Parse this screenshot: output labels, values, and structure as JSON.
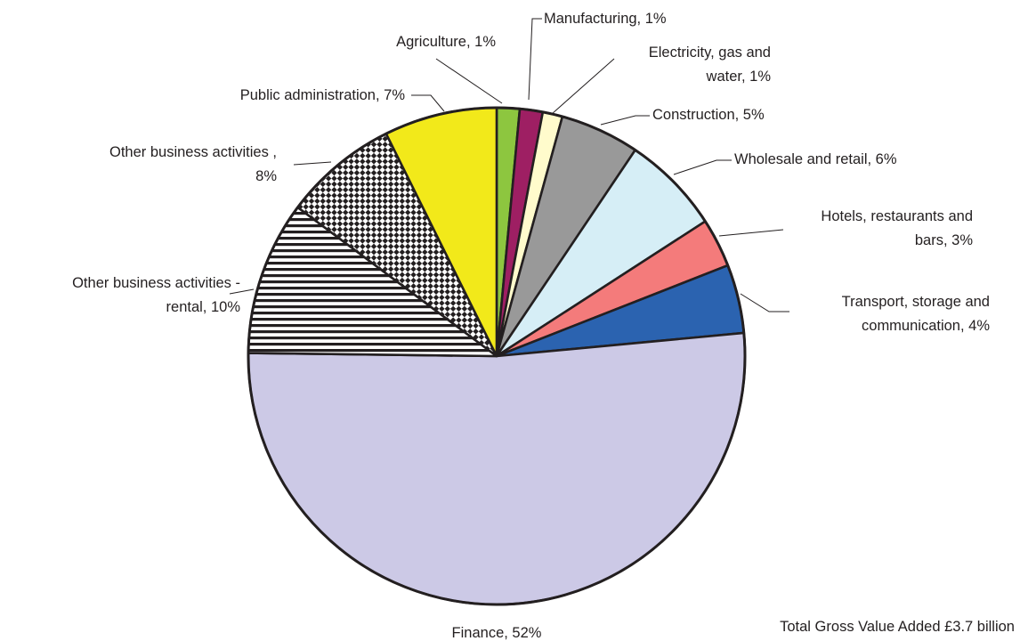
{
  "chart_data": {
    "type": "pie",
    "total_label": "Total Gross Value Added  £3.7 billion",
    "slices": [
      {
        "key": "agriculture",
        "label_lines": [
          "Agriculture, 1%"
        ],
        "value": 1.5,
        "fill": "#8dc63f",
        "pattern": "none"
      },
      {
        "key": "manufacturing",
        "label_lines": [
          "Manufacturing, 1%"
        ],
        "value": 1.5,
        "fill": "#9e1f63",
        "pattern": "none"
      },
      {
        "key": "electricity",
        "label_lines": [
          "Electricity, gas and",
          "water, 1%"
        ],
        "value": 1.3,
        "fill": "#fffbcc",
        "pattern": "none"
      },
      {
        "key": "construction",
        "label_lines": [
          "Construction, 5%"
        ],
        "value": 5.2,
        "fill": "#999999",
        "pattern": "none"
      },
      {
        "key": "wholesale",
        "label_lines": [
          "Wholesale and retail, 6%"
        ],
        "value": 6.5,
        "fill": "#d6eef6",
        "pattern": "none"
      },
      {
        "key": "hotels",
        "label_lines": [
          "Hotels, restaurants and",
          "bars, 3%"
        ],
        "value": 3.2,
        "fill": "#f47b7b",
        "pattern": "none"
      },
      {
        "key": "transport",
        "label_lines": [
          "Transport, storage and",
          "communication, 4%"
        ],
        "value": 4.5,
        "fill": "#2b63b0",
        "pattern": "none"
      },
      {
        "key": "finance",
        "label_lines": [
          "Finance, 52%"
        ],
        "value": 52.1,
        "fill": "#ccc9e6",
        "pattern": "none"
      },
      {
        "key": "other-rental",
        "label_lines": [
          "Other business activities -",
          "rental, 10%"
        ],
        "value": 10.1,
        "fill": "#ffffff",
        "pattern": "horizontal-stripes"
      },
      {
        "key": "other-business",
        "label_lines": [
          "Other business activities ,",
          "8%"
        ],
        "value": 7.5,
        "fill": "#ffffff",
        "pattern": "checker"
      },
      {
        "key": "public-admin",
        "label_lines": [
          "Public administration, 7%"
        ],
        "value": 7.4,
        "fill": "#f2e91a",
        "pattern": "none"
      }
    ]
  }
}
